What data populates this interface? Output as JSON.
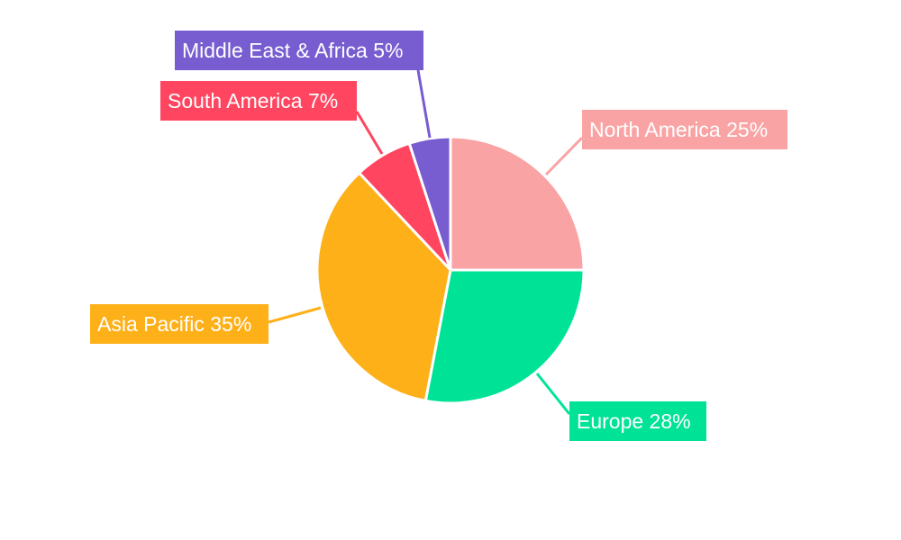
{
  "chart_data": {
    "type": "pie",
    "title": "",
    "legend": "none",
    "slices": [
      {
        "label": "North America",
        "value": 25,
        "color": "#F9A3A4",
        "text": "North America 25%"
      },
      {
        "label": "Europe",
        "value": 28,
        "color": "#00E396",
        "text": "Europe 28%"
      },
      {
        "label": "Asia Pacific",
        "value": 35,
        "color": "#FEB019",
        "text": "Asia Pacific 35%"
      },
      {
        "label": "South America",
        "value": 7,
        "color": "#FF4560",
        "text": "South America 7%"
      },
      {
        "label": "Middle East & Africa",
        "value": 5,
        "color": "#775DD0",
        "text": "Middle East & Africa 5%"
      }
    ]
  }
}
